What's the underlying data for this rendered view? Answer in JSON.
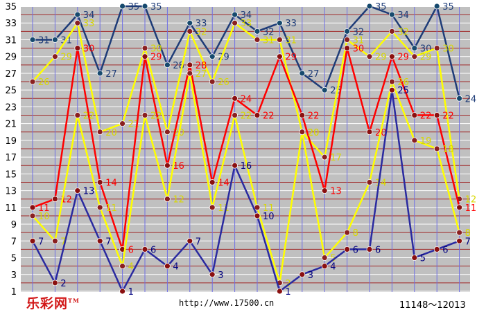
{
  "chart_data": {
    "type": "line",
    "title": "",
    "xlabel": "",
    "ylabel": "",
    "ylim": [
      1,
      35
    ],
    "yticks": [
      1,
      3,
      5,
      7,
      9,
      11,
      13,
      15,
      17,
      19,
      21,
      23,
      25,
      27,
      29,
      31,
      33,
      35
    ],
    "grid": true,
    "x_count": 20,
    "series": [
      {
        "color": "#1e3c78",
        "marker": "#174a6e",
        "values": [
          31,
          31,
          34,
          27,
          35,
          35,
          28,
          33,
          29,
          34,
          32,
          33,
          27,
          25,
          32,
          35,
          34,
          30,
          35,
          24
        ]
      },
      {
        "color": "#ffff00",
        "marker": "#8a2020",
        "label_color": "#d8d800",
        "values": [
          26,
          29,
          33,
          20,
          21,
          30,
          20,
          32,
          26,
          33,
          31,
          31,
          20,
          17,
          31,
          29,
          32,
          29,
          30,
          12
        ]
      },
      {
        "color": "#ff0000",
        "marker": "#8a1010",
        "label_color": "#ff0000",
        "values": [
          11,
          12,
          30,
          14,
          6,
          29,
          16,
          28,
          14,
          24,
          22,
          29,
          22,
          13,
          30,
          20,
          29,
          22,
          22,
          11
        ]
      },
      {
        "color": "#ffff00",
        "marker": "#8a2020",
        "label_color": "#d8d800",
        "values": [
          10,
          7,
          22,
          11,
          4,
          22,
          12,
          27,
          11,
          22,
          11,
          2,
          20,
          5,
          8,
          14,
          26,
          19,
          18,
          8
        ]
      },
      {
        "color": "#2a2aa0",
        "marker": "#8a1010",
        "label_color": "#000080",
        "values": [
          7,
          2,
          13,
          7,
          1,
          6,
          4,
          7,
          3,
          16,
          10,
          1,
          3,
          4,
          6,
          6,
          25,
          5,
          6,
          7
        ]
      }
    ]
  },
  "footer": {
    "logo": "乐彩网",
    "logo_mark": "TM",
    "url": "http://www.17500.cn",
    "range": "11148～12013"
  }
}
